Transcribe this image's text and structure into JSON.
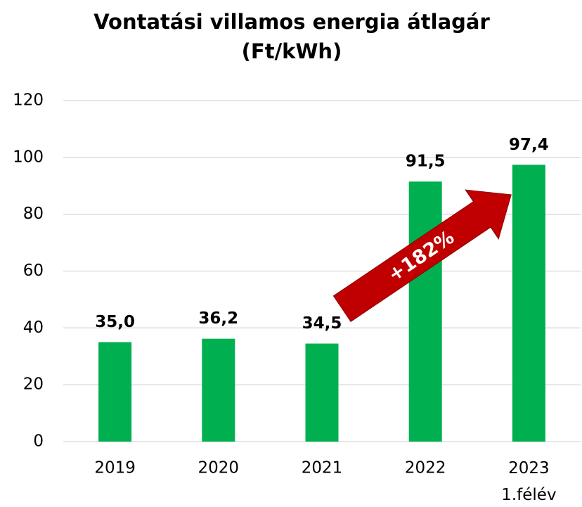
{
  "chart_data": {
    "type": "bar",
    "title": "Vontatási villamos energia átlagár",
    "subtitle": "(Ft/kWh)",
    "categories": [
      "2019",
      "2020",
      "2021",
      "2022",
      "2023\n1.félév"
    ],
    "values": [
      35.0,
      36.2,
      34.5,
      91.5,
      97.4
    ],
    "value_labels": [
      "35,0",
      "36,2",
      "34,5",
      "91,5",
      "97,4"
    ],
    "color": "#00b050",
    "ylim": [
      0,
      120
    ],
    "yticks": [
      0,
      20,
      40,
      60,
      80,
      100,
      120
    ],
    "grid": true,
    "annotation": "+182%",
    "annotation_color": "#c00000"
  }
}
